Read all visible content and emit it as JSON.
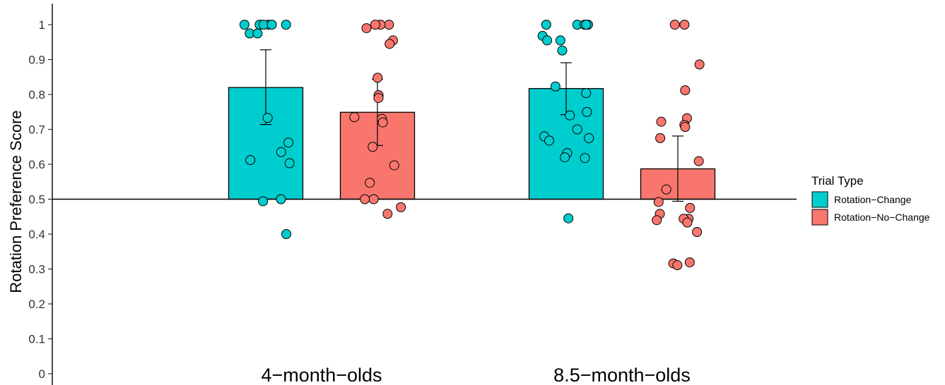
{
  "chart_data": {
    "type": "bar",
    "title": "",
    "ylabel": "Rotation Preference Score",
    "xlabel": "",
    "ylim": [
      0,
      1
    ],
    "yticks": [
      0,
      0.1,
      0.2,
      0.3,
      0.4,
      0.5,
      0.6,
      0.7,
      0.8,
      0.9,
      1
    ],
    "ytick_labels": [
      "0",
      "0.1",
      "0.2",
      "0.3",
      "0.4",
      "0.5",
      "0.6",
      "0.7",
      "0.8",
      "0.9",
      "1"
    ],
    "reference_line": 0.5,
    "grid": false,
    "legend_title": "Trial Type",
    "legend_position": "right",
    "categories": [
      "4−month−olds",
      "8.5−month−olds"
    ],
    "series": [
      {
        "name": "Rotation−Change",
        "color": "#00CDCD",
        "values": [
          0.82,
          0.817
        ],
        "error_low": [
          0.714,
          0.742
        ],
        "error_high": [
          0.928,
          0.891
        ],
        "points": [
          [
            1.0,
            1.0,
            1.0,
            1.0,
            1.0,
            1.0,
            0.975,
            0.975,
            0.733,
            0.662,
            0.635,
            0.612,
            0.603,
            0.5,
            0.494,
            0.4
          ],
          [
            1.0,
            1.0,
            1.0,
            1.0,
            1.0,
            0.968,
            0.955,
            0.955,
            0.926,
            0.823,
            0.804,
            0.75,
            0.74,
            0.7,
            0.68,
            0.675,
            0.668,
            0.632,
            0.62,
            0.618,
            0.445
          ]
        ]
      },
      {
        "name": "Rotation−No−Change",
        "color": "#F8766D",
        "values": [
          0.749,
          0.587
        ],
        "error_low": [
          0.654,
          0.494
        ],
        "error_high": [
          0.844,
          0.681
        ],
        "points": [
          [
            1.0,
            1.0,
            1.0,
            0.99,
            0.955,
            0.945,
            0.848,
            0.798,
            0.79,
            0.735,
            0.73,
            0.72,
            0.65,
            0.597,
            0.547,
            0.5,
            0.5,
            0.477,
            0.458
          ],
          [
            1.0,
            1.0,
            0.886,
            0.812,
            0.732,
            0.722,
            0.713,
            0.707,
            0.675,
            0.609,
            0.528,
            0.492,
            0.475,
            0.458,
            0.444,
            0.444,
            0.44,
            0.433,
            0.406,
            0.319,
            0.316,
            0.311
          ]
        ]
      }
    ]
  }
}
